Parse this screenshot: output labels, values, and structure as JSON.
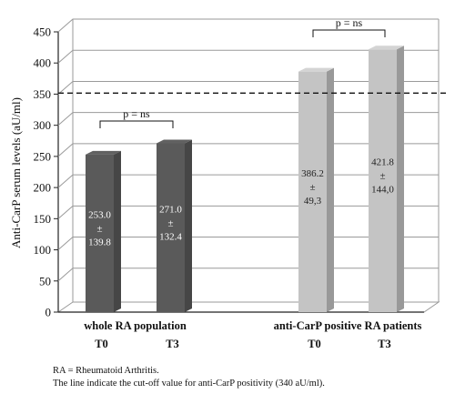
{
  "chart_data": {
    "type": "bar",
    "ylabel": "Anti-CarP serum levels (aU/ml)",
    "ylim": [
      0,
      450
    ],
    "yticks": [
      0,
      50,
      100,
      150,
      200,
      250,
      300,
      350,
      400,
      450
    ],
    "grid": true,
    "groups": [
      {
        "label": "whole RA population",
        "bars": [
          {
            "time": "T0",
            "value": 253.0,
            "mean_label": "253.0",
            "pm": "±",
            "sd_label": "139.8",
            "color": "#5a5a5a"
          },
          {
            "time": "T3",
            "value": 271.0,
            "mean_label": "271.0",
            "pm": "±",
            "sd_label": "132.4",
            "color": "#5a5a5a"
          }
        ],
        "comparison": "p = ns"
      },
      {
        "label": "anti-CarP positive RA patients",
        "bars": [
          {
            "time": "T0",
            "value": 386.2,
            "mean_label": "386.2",
            "pm": "±",
            "sd_label": "49,3",
            "color": "#c4c4c4"
          },
          {
            "time": "T3",
            "value": 421.8,
            "mean_label": "421.8",
            "pm": "±",
            "sd_label": "144,0",
            "color": "#c4c4c4"
          }
        ],
        "comparison": "p = ns"
      }
    ],
    "cutoff_value": 340
  },
  "footnotes": {
    "abbrev": "RA = Rheumatoid Arthritis.",
    "cutoff_note": "The line indicate the cut-off value for anti-CarP positivity (340 aU/ml)."
  }
}
